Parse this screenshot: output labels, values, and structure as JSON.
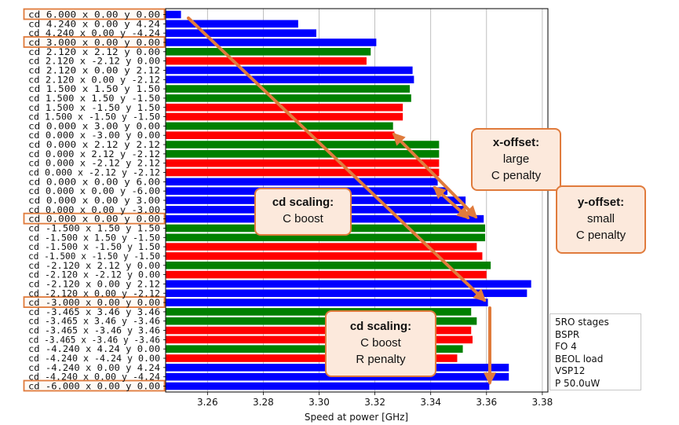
{
  "chart_data": {
    "type": "bar",
    "orientation": "horizontal",
    "xlabel": "Speed at power [GHz]",
    "xlim": [
      3.245,
      3.382
    ],
    "xticks": [
      3.26,
      3.28,
      3.3,
      3.32,
      3.34,
      3.36,
      3.38
    ],
    "xtick_labels": [
      "3.26",
      "3.28",
      "3.30",
      "3.32",
      "3.34",
      "3.36",
      "3.38"
    ],
    "grid": true,
    "categories": [
      "cd  6.000 x  0.00 y  0.00",
      "cd  4.240 x  0.00 y  4.24",
      "cd  4.240 x  0.00 y -4.24",
      "cd  3.000 x  0.00 y  0.00",
      "cd  2.120 x  2.12 y  0.00",
      "cd  2.120 x -2.12 y  0.00",
      "cd  2.120 x  0.00 y  2.12",
      "cd  2.120 x  0.00 y -2.12",
      "cd  1.500 x  1.50 y  1.50",
      "cd  1.500 x  1.50 y -1.50",
      "cd  1.500 x -1.50 y  1.50",
      "cd  1.500 x -1.50 y -1.50",
      "cd  0.000 x  3.00 y  0.00",
      "cd  0.000 x -3.00 y  0.00",
      "cd  0.000 x  2.12 y  2.12",
      "cd  0.000 x  2.12 y -2.12",
      "cd  0.000 x -2.12 y  2.12",
      "cd  0.000 x -2.12 y -2.12",
      "cd  0.000 x  0.00 y  6.00",
      "cd  0.000 x  0.00 y -6.00",
      "cd  0.000 x  0.00 y  3.00",
      "cd  0.000 x  0.00 y -3.00",
      "cd  0.000 x  0.00 y  0.00",
      "cd -1.500 x  1.50 y  1.50",
      "cd -1.500 x  1.50 y -1.50",
      "cd -1.500 x -1.50 y  1.50",
      "cd -1.500 x -1.50 y -1.50",
      "cd -2.120 x  2.12 y  0.00",
      "cd -2.120 x -2.12 y  0.00",
      "cd -2.120 x  0.00 y  2.12",
      "cd -2.120 x  0.00 y -2.12",
      "cd -3.000 x  0.00 y  0.00",
      "cd -3.465 x  3.46 y  3.46",
      "cd -3.465 x  3.46 y -3.46",
      "cd -3.465 x -3.46 y  3.46",
      "cd -3.465 x -3.46 y -3.46",
      "cd -4.240 x  4.24 y  0.00",
      "cd -4.240 x -4.24 y  0.00",
      "cd -4.240 x  0.00 y  4.24",
      "cd -4.240 x  0.00 y -4.24",
      "cd -6.000 x  0.00 y  0.00"
    ],
    "values": [
      3.2505,
      3.2925,
      3.299,
      3.3205,
      3.3185,
      3.317,
      3.3335,
      3.334,
      3.3325,
      3.333,
      3.33,
      3.33,
      3.3265,
      3.327,
      3.343,
      3.343,
      3.343,
      3.343,
      3.3425,
      3.346,
      3.3525,
      3.352,
      3.359,
      3.3595,
      3.3595,
      3.3565,
      3.3585,
      3.3615,
      3.36,
      3.376,
      3.3745,
      3.3605,
      3.3545,
      3.3565,
      3.3545,
      3.355,
      3.3515,
      3.3495,
      3.368,
      3.368,
      3.361
    ],
    "bar_colors": [
      "#0000ff",
      "#0000ff",
      "#0000ff",
      "#0000ff",
      "#008000",
      "#ff0000",
      "#0000ff",
      "#0000ff",
      "#008000",
      "#008000",
      "#ff0000",
      "#ff0000",
      "#008000",
      "#ff0000",
      "#008000",
      "#008000",
      "#ff0000",
      "#ff0000",
      "#0000ff",
      "#0000ff",
      "#0000ff",
      "#0000ff",
      "#0000ff",
      "#008000",
      "#008000",
      "#ff0000",
      "#ff0000",
      "#008000",
      "#ff0000",
      "#0000ff",
      "#0000ff",
      "#0000ff",
      "#008000",
      "#008000",
      "#ff0000",
      "#ff0000",
      "#008000",
      "#ff0000",
      "#0000ff",
      "#0000ff",
      "#0000ff"
    ],
    "highlighted_categories": [
      0,
      3,
      22,
      31,
      40
    ],
    "annotations": [
      {
        "id": "cd-scaling-top",
        "title": "cd scaling:",
        "lines": [
          "C boost"
        ]
      },
      {
        "id": "x-offset",
        "title": "x-offset:",
        "lines": [
          "large",
          "C penalty"
        ]
      },
      {
        "id": "y-offset",
        "title": "y-offset:",
        "lines": [
          "small",
          "C penalty"
        ]
      },
      {
        "id": "cd-scaling-bottom",
        "title": "cd scaling:",
        "lines": [
          "C boost",
          "R penalty"
        ]
      }
    ],
    "legend_text": [
      "5RO stages",
      "BSPR",
      "FO 4",
      "BEOL load",
      "VSP12",
      "P 50.0uW"
    ],
    "colors": {
      "blue": "#0000ff",
      "green": "#008000",
      "red": "#ff0000",
      "accent": "#e07b3c",
      "callout_fill": "#fce9dc"
    }
  }
}
